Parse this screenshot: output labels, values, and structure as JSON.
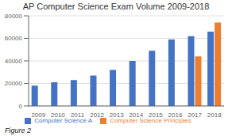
{
  "chart_data": {
    "type": "bar",
    "title": "AP Computer Science Exam Volume 2009-2018",
    "categories": [
      "2009",
      "2010",
      "2011",
      "2012",
      "2013",
      "2014",
      "2015",
      "2016",
      "2017",
      "2018"
    ],
    "series": [
      {
        "name": "Computer Science A",
        "color": "#4472C4",
        "values": [
          18000,
          21000,
          23000,
          27000,
          32000,
          40000,
          49000,
          59000,
          62000,
          66000
        ]
      },
      {
        "name": "Computer Science Principles",
        "color": "#ED7D31",
        "values": [
          0,
          0,
          0,
          0,
          0,
          0,
          0,
          0,
          44000,
          74000
        ]
      }
    ],
    "ylim": [
      0,
      80000
    ],
    "yticks": [
      0,
      20000,
      40000,
      60000,
      80000
    ],
    "grid": true,
    "legend": "bottom",
    "annotations": [
      "Figure 2"
    ]
  }
}
